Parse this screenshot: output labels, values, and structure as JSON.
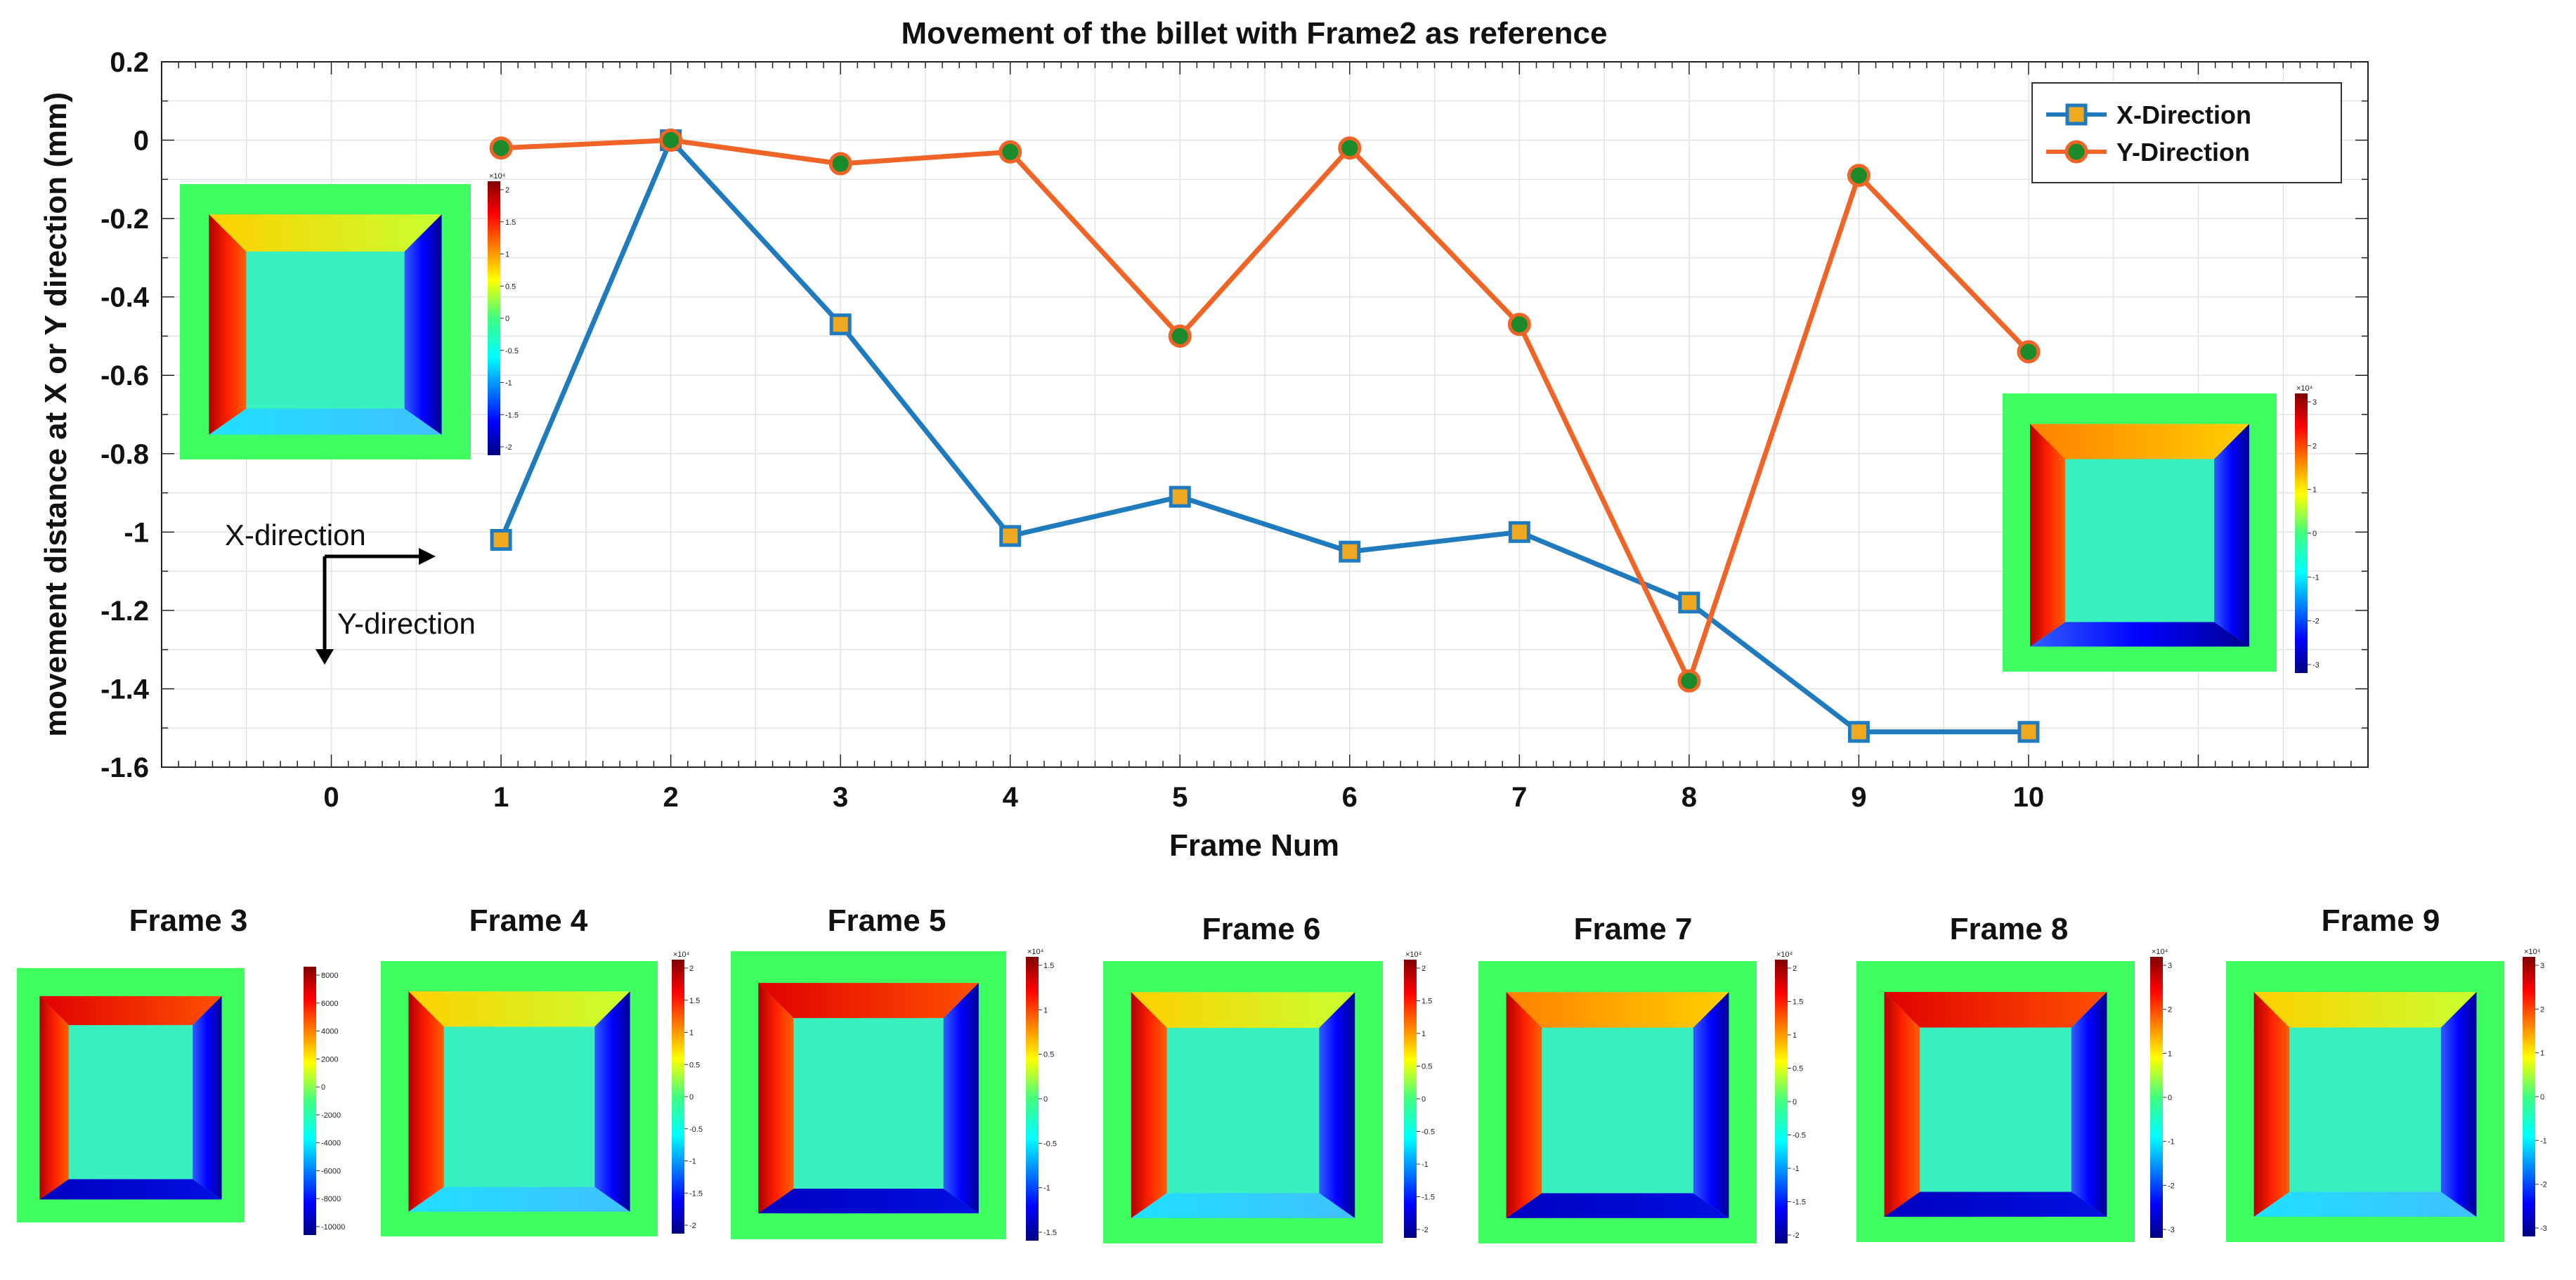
{
  "chart_data": {
    "type": "line",
    "title": "Movement of the billet with Frame2 as reference",
    "xlabel": "Frame Num",
    "ylabel": "movement distance at X or Y direction (mm)",
    "xlim": [
      -1,
      12
    ],
    "ylim": [
      -1.6,
      0.2
    ],
    "x_ticks": [
      0,
      1,
      2,
      3,
      4,
      5,
      6,
      7,
      8,
      9,
      10
    ],
    "y_ticks": [
      0.2,
      0,
      -0.2,
      -0.4,
      -0.6,
      -0.8,
      -1,
      -1.2,
      -1.4,
      -1.6
    ],
    "y_tick_labels": [
      "0.2",
      "0",
      "-0.2",
      "-0.4",
      "-0.6",
      "-0.8",
      "-1",
      "-1.2",
      "-1.4",
      "-1.6"
    ],
    "grid": true,
    "legend_position": "top-right",
    "series": [
      {
        "name": "X-Direction",
        "color": "#1f7bbd",
        "marker": "square",
        "marker_fill": "#f0a820",
        "x": [
          1,
          2,
          3,
          4,
          5,
          6,
          7,
          8,
          9,
          10
        ],
        "values": [
          -1.02,
          0.0,
          -0.47,
          -1.01,
          -0.91,
          -1.05,
          -1.0,
          -1.18,
          -1.51,
          -1.51
        ]
      },
      {
        "name": "Y-Direction",
        "color": "#f06428",
        "marker": "circle",
        "marker_fill": "#1a8a2a",
        "x": [
          1,
          2,
          3,
          4,
          5,
          6,
          7,
          8,
          9,
          10
        ],
        "values": [
          -0.02,
          0.0,
          -0.06,
          -0.03,
          -0.5,
          -0.02,
          -0.47,
          -1.38,
          -0.09,
          -0.54
        ]
      }
    ]
  },
  "annotations": {
    "x_direction_label": "X-direction",
    "y_direction_label": "Y-direction"
  },
  "inset_colorbars": {
    "top_left": [
      "2",
      "1.5",
      "1",
      "0.5",
      "0",
      "-0.5",
      "-1",
      "-1.5",
      "-2"
    ],
    "top_left_exp": "×10⁴",
    "right": [
      "3",
      "2",
      "1",
      "0",
      "-1",
      "-2",
      "-3"
    ],
    "right_exp": "×10⁴"
  },
  "frames": [
    {
      "label": "Frame 3",
      "ticks": [
        "8000",
        "6000",
        "4000",
        "2000",
        "0",
        "-2000",
        "-4000",
        "-6000",
        "-8000",
        "-10000"
      ],
      "exp": ""
    },
    {
      "label": "Frame 4",
      "ticks": [
        "2",
        "1.5",
        "1",
        "0.5",
        "0",
        "-0.5",
        "-1",
        "-1.5",
        "-2"
      ],
      "exp": "×10⁴"
    },
    {
      "label": "Frame 5",
      "ticks": [
        "1.5",
        "1",
        "0.5",
        "0",
        "-0.5",
        "-1",
        "-1.5"
      ],
      "exp": "×10⁴"
    },
    {
      "label": "Frame 6",
      "ticks": [
        "2",
        "1.5",
        "1",
        "0.5",
        "0",
        "-0.5",
        "-1",
        "-1.5",
        "-2"
      ],
      "exp": "×10⁴"
    },
    {
      "label": "Frame 7",
      "ticks": [
        "2",
        "1.5",
        "1",
        "0.5",
        "0",
        "-0.5",
        "-1",
        "-1.5",
        "-2"
      ],
      "exp": "×10⁴"
    },
    {
      "label": "Frame 8",
      "ticks": [
        "3",
        "2",
        "1",
        "0",
        "-1",
        "-2",
        "-3"
      ],
      "exp": "×10⁴"
    },
    {
      "label": "Frame 9",
      "ticks": [
        "3",
        "2",
        "1",
        "0",
        "-1",
        "-2",
        "-3"
      ],
      "exp": "×10⁴"
    }
  ]
}
